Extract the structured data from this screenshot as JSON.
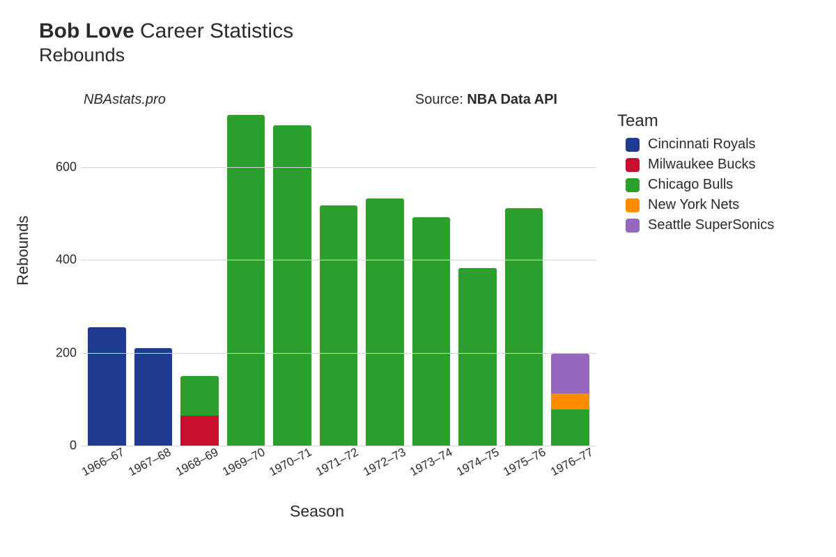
{
  "title": {
    "player": "Bob Love",
    "suffix": "Career Statistics",
    "metric": "Rebounds"
  },
  "attribution": {
    "site": "NBAstats.pro",
    "source_prefix": "Source: ",
    "source_name": "NBA Data API"
  },
  "axes": {
    "x_label": "Season",
    "y_label": "Rebounds"
  },
  "legend": {
    "title": "Team",
    "items": [
      {
        "label": "Cincinnati Royals",
        "color": "#1f3b8f"
      },
      {
        "label": "Milwaukee Bucks",
        "color": "#c8102e"
      },
      {
        "label": "Chicago Bulls",
        "color": "#2ca02c"
      },
      {
        "label": "New York Nets",
        "color": "#ff8c00"
      },
      {
        "label": "Seattle SuperSonics",
        "color": "#9467bd"
      }
    ]
  },
  "chart": {
    "type": "stacked-bar",
    "background_color": "#ffffff",
    "grid_color": "#d6d6d6",
    "bar_width_ratio": 0.82,
    "ylim": [
      0,
      720
    ],
    "yticks": [
      0,
      200,
      400,
      600
    ],
    "tick_fontsize": 18,
    "label_fontsize": 22,
    "categories": [
      "1966–67",
      "1967–68",
      "1968–69",
      "1969–70",
      "1970–71",
      "1971–72",
      "1972–73",
      "1973–74",
      "1974–75",
      "1975–76",
      "1976–77"
    ],
    "series": [
      {
        "season": "1966–67",
        "segments": [
          {
            "team": "Cincinnati Royals",
            "value": 255,
            "color": "#1f3b8f"
          }
        ]
      },
      {
        "season": "1967–68",
        "segments": [
          {
            "team": "Cincinnati Royals",
            "value": 210,
            "color": "#1f3b8f"
          }
        ]
      },
      {
        "season": "1968–69",
        "segments": [
          {
            "team": "Milwaukee Bucks",
            "value": 65,
            "color": "#c8102e"
          },
          {
            "team": "Chicago Bulls",
            "value": 85,
            "color": "#2ca02c"
          }
        ]
      },
      {
        "season": "1969–70",
        "segments": [
          {
            "team": "Chicago Bulls",
            "value": 712,
            "color": "#2ca02c"
          }
        ]
      },
      {
        "season": "1970–71",
        "segments": [
          {
            "team": "Chicago Bulls",
            "value": 690,
            "color": "#2ca02c"
          }
        ]
      },
      {
        "season": "1971–72",
        "segments": [
          {
            "team": "Chicago Bulls",
            "value": 518,
            "color": "#2ca02c"
          }
        ]
      },
      {
        "season": "1972–73",
        "segments": [
          {
            "team": "Chicago Bulls",
            "value": 532,
            "color": "#2ca02c"
          }
        ]
      },
      {
        "season": "1973–74",
        "segments": [
          {
            "team": "Chicago Bulls",
            "value": 492,
            "color": "#2ca02c"
          }
        ]
      },
      {
        "season": "1974–75",
        "segments": [
          {
            "team": "Chicago Bulls",
            "value": 382,
            "color": "#2ca02c"
          }
        ]
      },
      {
        "season": "1975–76",
        "segments": [
          {
            "team": "Chicago Bulls",
            "value": 512,
            "color": "#2ca02c"
          }
        ]
      },
      {
        "season": "1976–77",
        "segments": [
          {
            "team": "Chicago Bulls",
            "value": 78,
            "color": "#2ca02c"
          },
          {
            "team": "New York Nets",
            "value": 35,
            "color": "#ff8c00"
          },
          {
            "team": "Seattle SuperSonics",
            "value": 85,
            "color": "#9467bd"
          }
        ]
      }
    ]
  }
}
